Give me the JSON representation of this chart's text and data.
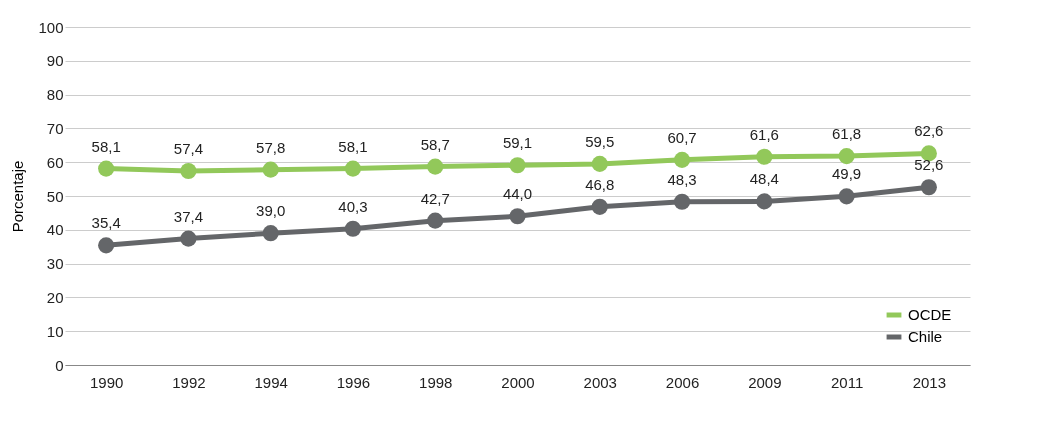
{
  "chart_data": {
    "type": "line",
    "ylabel": "Porcentaje",
    "categories": [
      "1990",
      "1992",
      "1994",
      "1996",
      "1998",
      "2000",
      "2003",
      "2006",
      "2009",
      "2011",
      "2013"
    ],
    "series": [
      {
        "name": "OCDE",
        "color": "#92c85a",
        "values": [
          58.1,
          57.4,
          57.8,
          58.1,
          58.7,
          59.1,
          59.5,
          60.7,
          61.6,
          61.8,
          62.6
        ],
        "value_labels": [
          "58,1",
          "57,4",
          "57,8",
          "58,1",
          "58,7",
          "59,1",
          "59,5",
          "60,7",
          "61,6",
          "61,8",
          "62,6"
        ]
      },
      {
        "name": "Chile",
        "color": "#646669",
        "values": [
          35.4,
          37.4,
          39.0,
          40.3,
          42.7,
          44.0,
          46.8,
          48.3,
          48.4,
          49.9,
          52.6
        ],
        "value_labels": [
          "35,4",
          "37,4",
          "39,0",
          "40,3",
          "42,7",
          "44,0",
          "46,8",
          "48,3",
          "48,4",
          "49,9",
          "52,6"
        ]
      }
    ],
    "ylim": [
      0,
      100
    ],
    "yticks": [
      0,
      10,
      20,
      30,
      40,
      50,
      60,
      70,
      80,
      90,
      100
    ],
    "grid": "y",
    "legend": "bottom right",
    "marker": "circle",
    "line_style": "solid"
  }
}
